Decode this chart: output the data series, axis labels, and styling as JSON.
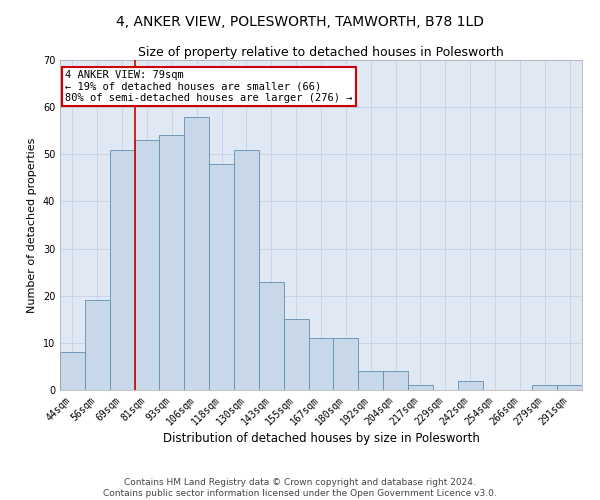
{
  "title": "4, ANKER VIEW, POLESWORTH, TAMWORTH, B78 1LD",
  "subtitle": "Size of property relative to detached houses in Polesworth",
  "xlabel": "Distribution of detached houses by size in Polesworth",
  "ylabel": "Number of detached properties",
  "categories": [
    "44sqm",
    "56sqm",
    "69sqm",
    "81sqm",
    "93sqm",
    "106sqm",
    "118sqm",
    "130sqm",
    "143sqm",
    "155sqm",
    "167sqm",
    "180sqm",
    "192sqm",
    "204sqm",
    "217sqm",
    "229sqm",
    "242sqm",
    "254sqm",
    "266sqm",
    "279sqm",
    "291sqm"
  ],
  "values": [
    8,
    19,
    51,
    53,
    54,
    58,
    48,
    51,
    23,
    15,
    11,
    11,
    4,
    4,
    1,
    0,
    2,
    0,
    0,
    1,
    1
  ],
  "bar_color": "#c8d8e8",
  "bar_edge_color": "#6090b0",
  "vline_x": 2.5,
  "vline_color": "#cc0000",
  "annotation_text": "4 ANKER VIEW: 79sqm\n← 19% of detached houses are smaller (66)\n80% of semi-detached houses are larger (276) →",
  "annotation_box_color": "#ffffff",
  "annotation_box_edge_color": "#cc0000",
  "ylim": [
    0,
    70
  ],
  "yticks": [
    0,
    10,
    20,
    30,
    40,
    50,
    60,
    70
  ],
  "grid_color": "#c8d4e8",
  "background_color": "#e0e8f4",
  "footer_line1": "Contains HM Land Registry data © Crown copyright and database right 2024.",
  "footer_line2": "Contains public sector information licensed under the Open Government Licence v3.0.",
  "title_fontsize": 10,
  "subtitle_fontsize": 9,
  "xlabel_fontsize": 8.5,
  "ylabel_fontsize": 8,
  "tick_fontsize": 7,
  "annotation_fontsize": 7.5,
  "footer_fontsize": 6.5
}
